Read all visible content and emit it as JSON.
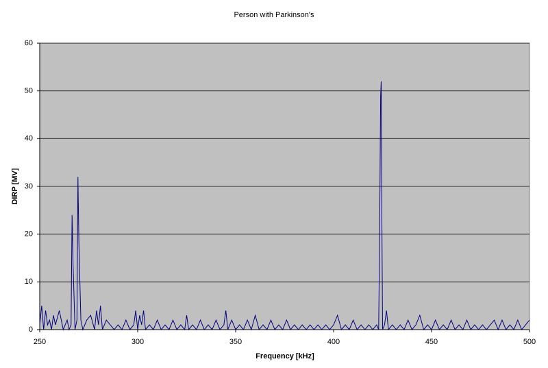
{
  "chart_data": {
    "type": "line",
    "title": "Person with Parkinson's",
    "x_label": "Frequency [kHz]",
    "y_label": "DIRP [MV]",
    "x": [
      250,
      251,
      252,
      253,
      254,
      255,
      256,
      257,
      258,
      260,
      262,
      264,
      265,
      266,
      266.5,
      267,
      268,
      269,
      269.5,
      270,
      271,
      272,
      274,
      276,
      278,
      279,
      280,
      281,
      282,
      284,
      286,
      288,
      290,
      292,
      294,
      296,
      298,
      299,
      300,
      301,
      302,
      303,
      304,
      306,
      308,
      310,
      312,
      314,
      316,
      318,
      320,
      322,
      324,
      325,
      326,
      328,
      330,
      332,
      334,
      336,
      338,
      340,
      342,
      344,
      345,
      346,
      348,
      350,
      352,
      354,
      356,
      358,
      360,
      362,
      364,
      366,
      368,
      370,
      372,
      374,
      376,
      378,
      380,
      382,
      384,
      386,
      388,
      390,
      392,
      394,
      396,
      398,
      400,
      402,
      404,
      406,
      408,
      410,
      412,
      414,
      416,
      418,
      420,
      422,
      423,
      423.5,
      424,
      424.3,
      424.6,
      425,
      426,
      427,
      428,
      430,
      432,
      434,
      436,
      438,
      440,
      442,
      444,
      446,
      448,
      450,
      452,
      454,
      456,
      458,
      460,
      462,
      464,
      466,
      468,
      470,
      472,
      474,
      476,
      478,
      480,
      482,
      484,
      486,
      488,
      490,
      492,
      494,
      496,
      498,
      500
    ],
    "values": [
      1,
      5,
      0,
      4,
      1,
      2,
      0,
      3,
      1,
      4,
      0,
      2,
      0,
      1,
      24,
      14,
      0,
      2,
      32,
      18,
      2,
      0,
      2,
      3,
      0,
      4,
      1,
      5,
      0,
      2,
      1,
      0,
      1,
      0,
      2,
      0,
      1,
      4,
      0,
      3,
      1,
      4,
      0,
      1,
      0,
      2,
      0,
      1,
      0,
      2,
      0,
      1,
      0,
      3,
      0,
      1,
      0,
      2,
      0,
      1,
      0,
      2,
      0,
      1,
      4,
      0,
      2,
      0,
      1,
      0,
      2,
      0,
      3,
      0,
      1,
      0,
      2,
      0,
      1,
      0,
      2,
      0,
      1,
      0,
      1,
      0,
      1,
      0,
      1,
      0,
      1,
      0,
      1,
      3,
      0,
      1,
      0,
      2,
      0,
      1,
      0,
      1,
      0,
      1,
      0,
      20,
      49,
      52,
      26,
      0,
      1,
      4,
      0,
      1,
      0,
      1,
      0,
      2,
      0,
      1,
      3,
      0,
      1,
      0,
      2,
      0,
      1,
      0,
      2,
      0,
      1,
      0,
      2,
      0,
      1,
      0,
      1,
      0,
      1,
      2,
      0,
      2,
      0,
      1,
      0,
      2,
      0,
      1,
      2
    ],
    "color": "#000080",
    "background": "#c0c0c0",
    "xlim": [
      250,
      500
    ],
    "xticks": [
      250,
      300,
      350,
      400,
      450,
      500
    ],
    "ylim": [
      0,
      60
    ],
    "yticks": [
      0,
      10,
      20,
      30,
      40,
      50,
      60
    ],
    "grid": true
  }
}
